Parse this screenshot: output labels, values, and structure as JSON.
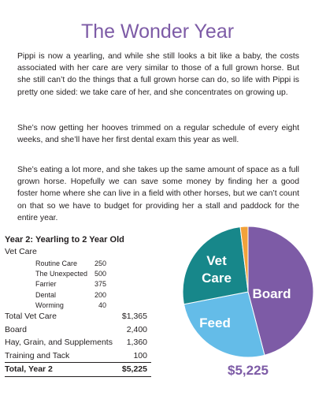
{
  "header": {
    "title": "The Wonder Year"
  },
  "paragraphs": [
    "Pippi is now a yearling, and while she still looks a bit like a baby, the costs associated with her care are very similar to those of a full grown horse. But she still can’t do the things that a full grown horse can do, so life with Pippi is pretty one sided: we take care of her, and she concentrates on growing up.",
    "She’s now getting her hooves trimmed on a regular schedule of every eight weeks, and she’ll have her first dental exam this year as well.",
    "She’s eating a lot more, and she takes up the same amount of space as a full grown horse. Hopefully we can save some money by finding her a good foster home where she can live in a field with other horses, but we can’t count on that so we have to budget for providing her a stall and paddock for the entire year."
  ],
  "table": {
    "title": "Year 2: Yearling to 2 Year Old",
    "section": "Vet Care",
    "items": [
      [
        "Routine Care",
        "250"
      ],
      [
        "The Unexpected",
        "500"
      ],
      [
        "Farrier",
        "375"
      ],
      [
        "Dental",
        "200"
      ],
      [
        "Worming",
        "40"
      ]
    ],
    "rows": [
      [
        "Total Vet Care",
        "$1,365"
      ],
      [
        "Board",
        "2,400"
      ],
      [
        "Hay, Grain, and Supplements",
        "1,360"
      ],
      [
        "Training and Tack",
        "100"
      ]
    ],
    "total": [
      "Total, Year 2",
      "$5,225"
    ]
  },
  "chart_data": {
    "type": "pie",
    "categories": [
      "Board",
      "Feed",
      "Vet Care",
      null
    ],
    "values": [
      2400,
      1360,
      1365,
      100
    ],
    "colors": [
      "#7d5ba6",
      "#64bce8",
      "#17878a",
      "#f2a23a"
    ],
    "caption": "$5,225"
  }
}
